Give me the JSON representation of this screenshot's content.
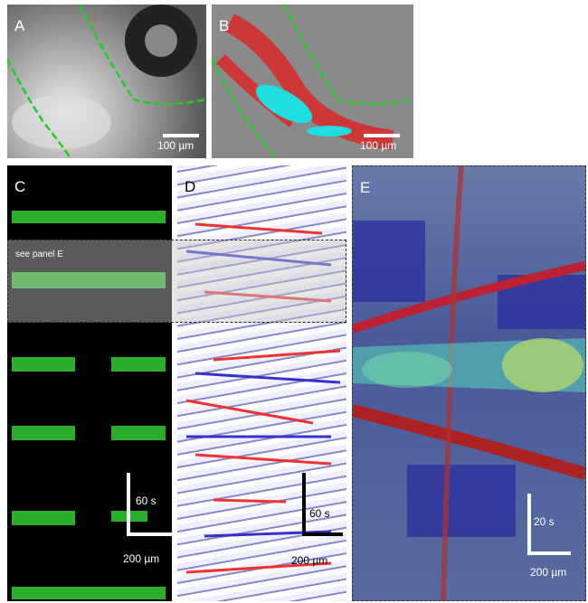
{
  "panels": [
    {
      "label": "A",
      "scale_label": "100 µm"
    },
    {
      "label": "B",
      "scale_label": "100 µm"
    },
    {
      "label": "C",
      "time_label": "60 s",
      "scale_label": "200 µm"
    },
    {
      "label": "D",
      "time_label": "60 s",
      "scale_label": "200 µm"
    },
    {
      "label": "E",
      "time_label": "20 s",
      "scale_label": "200 µm"
    }
  ],
  "overlay_label": "see panel E"
}
